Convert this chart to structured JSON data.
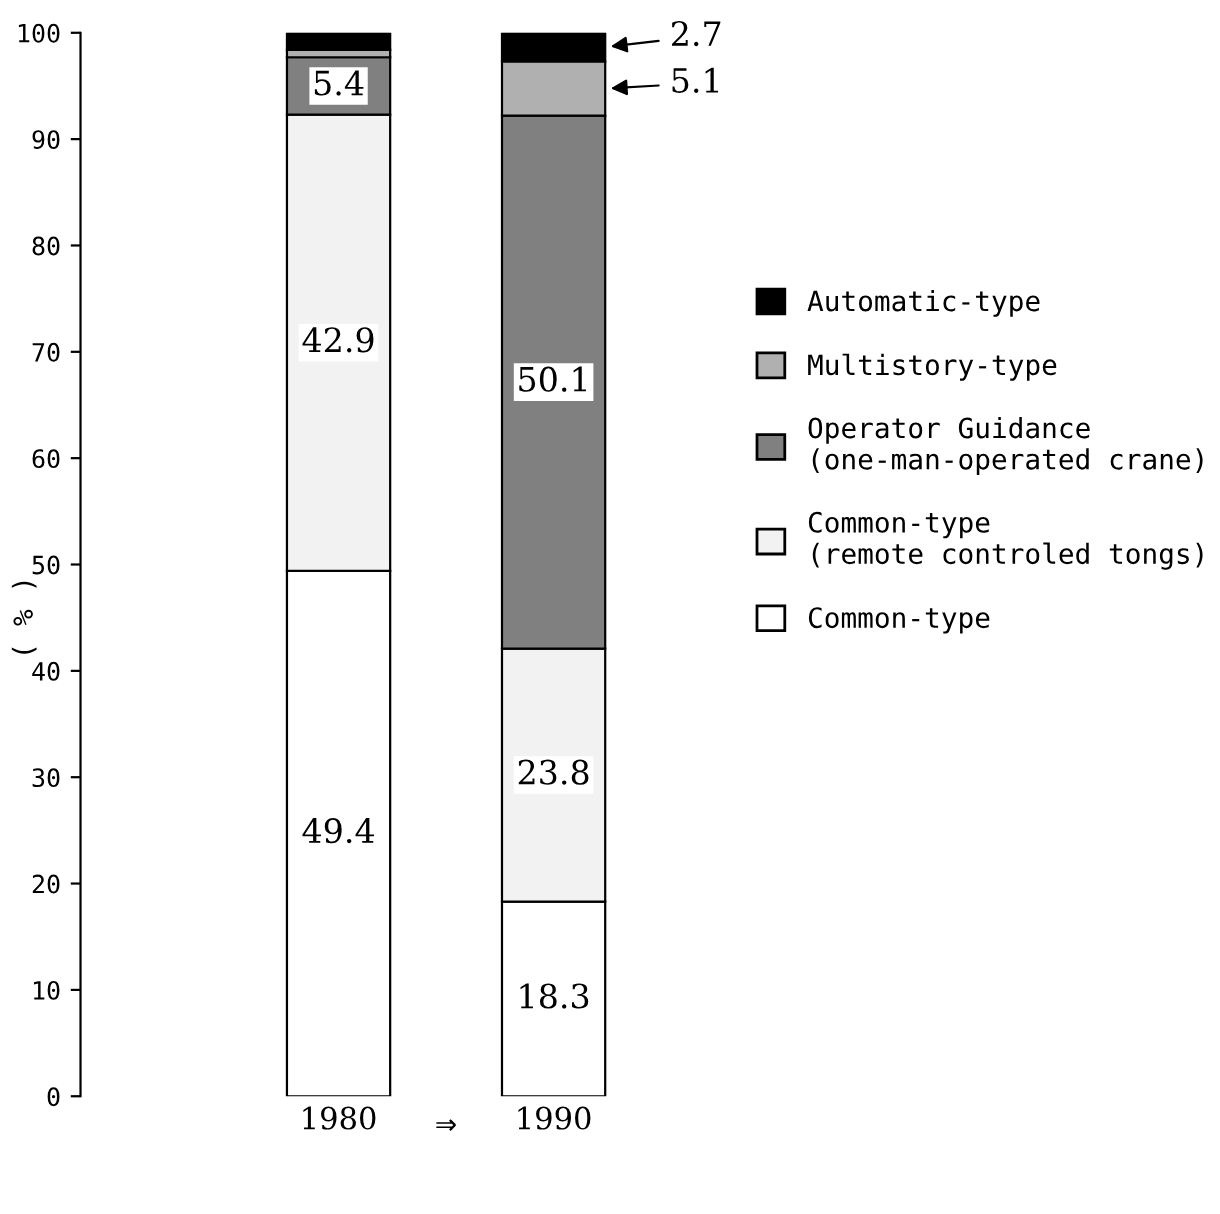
{
  "chart_data": {
    "type": "bar",
    "stacked": true,
    "ylabel": "( % )",
    "categories": [
      "1980",
      "1990"
    ],
    "series": [
      {
        "name": "Common-type",
        "color": "#ffffff",
        "values": [
          49.4,
          18.3
        ],
        "value_labels": [
          "49.4",
          "18.3"
        ]
      },
      {
        "name": "Common-type\n(remote controled tongs)",
        "color": "#f2f2f2",
        "values": [
          42.9,
          23.8
        ],
        "value_labels": [
          "42.9",
          "23.8"
        ]
      },
      {
        "name": "Operator Guidance\n(one-man-operated crane)",
        "color": "#808080",
        "values": [
          5.4,
          50.1
        ],
        "value_labels": [
          "5.4",
          "50.1"
        ]
      },
      {
        "name": "Multistory-type",
        "color": "#b0b0b0",
        "values": [
          0.7,
          5.1
        ],
        "value_labels": [
          null,
          "5.1"
        ]
      },
      {
        "name": "Automatic-type",
        "color": "#000000",
        "values": [
          1.6,
          2.7
        ],
        "value_labels": [
          null,
          "2.7"
        ]
      }
    ],
    "ylim": [
      0,
      100
    ],
    "yticks": [
      0,
      10,
      20,
      30,
      40,
      50,
      60,
      70,
      80,
      90,
      100
    ],
    "annotations": [
      {
        "text": "⇒"
      }
    ],
    "legend": "right",
    "grid": false
  }
}
